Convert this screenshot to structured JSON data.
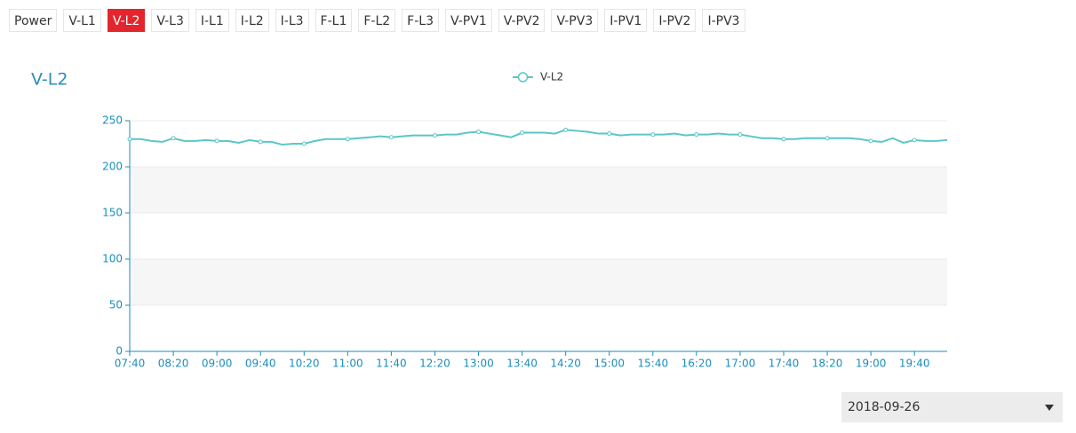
{
  "tabs": [
    {
      "label": "Power"
    },
    {
      "label": "V-L1"
    },
    {
      "label": "V-L2",
      "active": true
    },
    {
      "label": "V-L3"
    },
    {
      "label": "I-L1"
    },
    {
      "label": "I-L2"
    },
    {
      "label": "I-L3"
    },
    {
      "label": "F-L1"
    },
    {
      "label": "F-L2"
    },
    {
      "label": "F-L3"
    },
    {
      "label": "V-PV1"
    },
    {
      "label": "V-PV2"
    },
    {
      "label": "V-PV3"
    },
    {
      "label": "I-PV1"
    },
    {
      "label": "I-PV2"
    },
    {
      "label": "I-PV3"
    }
  ],
  "chart_data": {
    "type": "line",
    "title": "V-L2",
    "categories": [
      "07:40",
      null,
      null,
      null,
      "08:20",
      null,
      null,
      null,
      "09:00",
      null,
      null,
      null,
      "09:40",
      null,
      null,
      null,
      "10:20",
      null,
      null,
      null,
      "11:00",
      null,
      null,
      null,
      "11:40",
      null,
      null,
      null,
      "12:20",
      null,
      null,
      null,
      "13:00",
      null,
      null,
      null,
      "13:40",
      null,
      null,
      null,
      "14:20",
      null,
      null,
      null,
      "15:00",
      null,
      null,
      null,
      "15:40",
      null,
      null,
      null,
      "16:20",
      null,
      null,
      null,
      "17:00",
      null,
      null,
      null,
      "17:40",
      null,
      null,
      null,
      "18:20",
      null,
      null,
      null,
      "19:00",
      null,
      null,
      null,
      "19:40",
      null,
      null,
      null
    ],
    "series": [
      {
        "name": "V-L2",
        "color": "#5bc6c8",
        "values": [
          230,
          230,
          228,
          227,
          231,
          228,
          228,
          229,
          228,
          228,
          226,
          229,
          227,
          227,
          224,
          225,
          225,
          228,
          230,
          230,
          230,
          231,
          232,
          233,
          232,
          233,
          234,
          234,
          234,
          235,
          235,
          237,
          238,
          236,
          234,
          232,
          237,
          237,
          237,
          236,
          240,
          239,
          238,
          236,
          236,
          234,
          235,
          235,
          235,
          235,
          236,
          234,
          235,
          235,
          236,
          235,
          235,
          233,
          231,
          231,
          230,
          230,
          231,
          231,
          231,
          231,
          231,
          230,
          228,
          227,
          231,
          226,
          229,
          228,
          228,
          229
        ]
      }
    ],
    "ylim": [
      0,
      250
    ],
    "yticks": [
      0,
      50,
      100,
      150,
      200,
      250
    ],
    "split_area": true,
    "legend": "top"
  },
  "date_select": {
    "value": "2018-09-26"
  }
}
